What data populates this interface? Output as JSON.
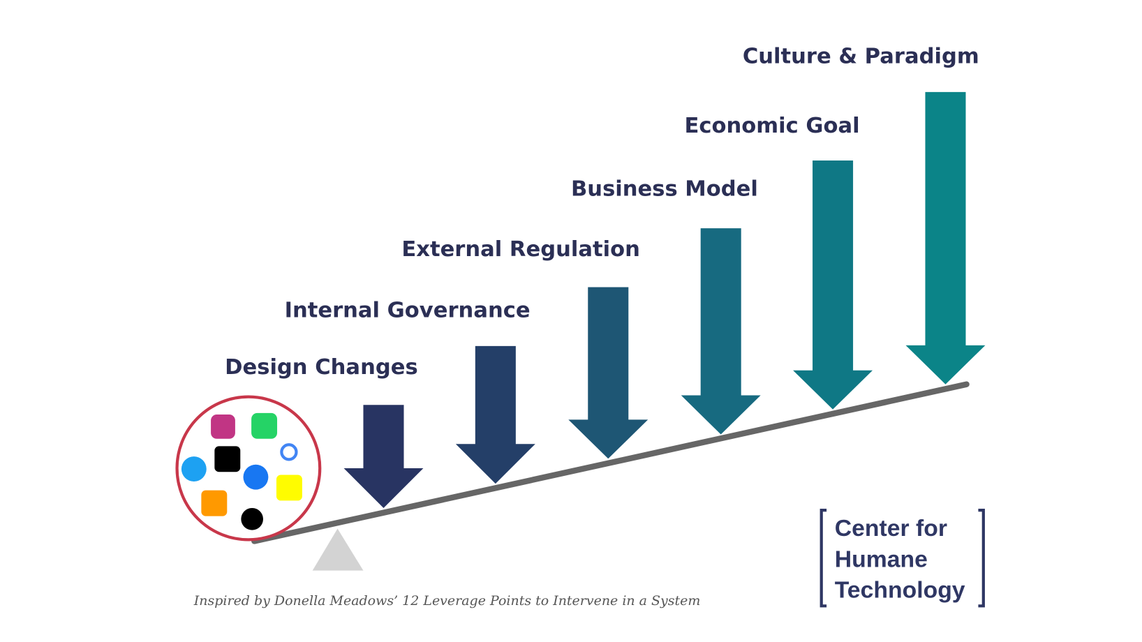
{
  "levers": [
    {
      "label": "Design Changes"
    },
    {
      "label": "Internal Governance"
    },
    {
      "label": "External Regulation"
    },
    {
      "label": "Business Model"
    },
    {
      "label": "Economic Goal"
    },
    {
      "label": "Culture & Paradigm"
    }
  ],
  "footnote": "Inspired by Donella Meadows’ 12 Leverage Points to Intervene in a System",
  "logo": {
    "lines": [
      "Center for",
      "Humane",
      "Technology"
    ]
  }
}
